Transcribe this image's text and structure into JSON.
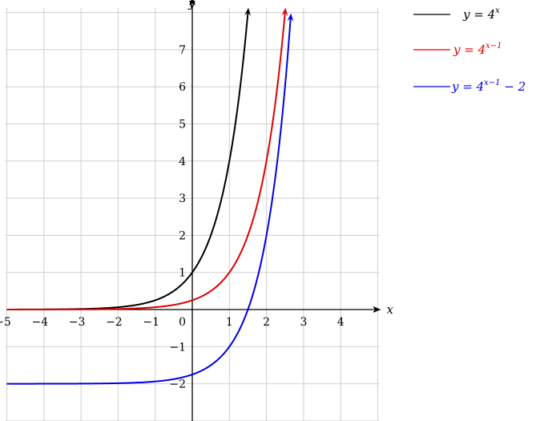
{
  "chart_data": {
    "type": "line",
    "xlabel": "x",
    "ylabel": "y",
    "xlim": [
      -5,
      5
    ],
    "ylim": [
      -3,
      8
    ],
    "x_ticks": [
      "−5",
      "−4",
      "−3",
      "−2",
      "−1",
      "1",
      "2",
      "3",
      "4"
    ],
    "y_ticks": [
      "−2",
      "−1",
      "1",
      "2",
      "3",
      "4",
      "5",
      "6",
      "7"
    ],
    "origin_label": "0",
    "grid": true,
    "legend_placement": "top-right (outside plot)",
    "series": [
      {
        "name": "y = 4^x",
        "label_base": "y = 4",
        "label_exp": "x",
        "label_tail": "",
        "base": 4,
        "shift": 0,
        "vshift": 0,
        "x_start": -5,
        "x_end": 1.5,
        "color": "#000000"
      },
      {
        "name": "y = 4^(x−1)",
        "label_base": "y = 4",
        "label_exp": "x−1",
        "label_tail": "",
        "base": 4,
        "shift": 1,
        "vshift": 0,
        "x_start": -5,
        "x_end": 2.5,
        "color": "#e00000"
      },
      {
        "name": "y = 4^(x−1) − 2",
        "label_base": "y = 4",
        "label_exp": "x−1",
        "label_tail": " − 2",
        "base": 4,
        "shift": 1,
        "vshift": -2,
        "x_start": -5,
        "x_end": 2.65,
        "color": "#0000e6"
      }
    ]
  }
}
